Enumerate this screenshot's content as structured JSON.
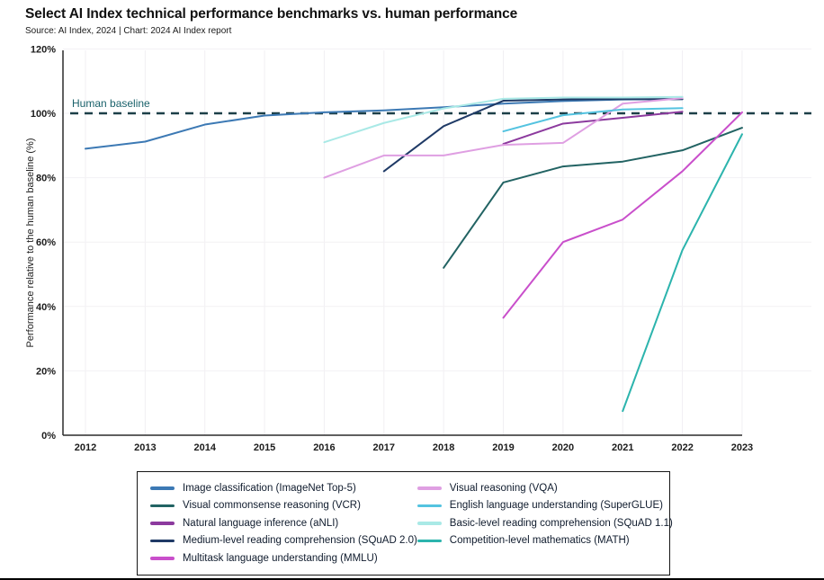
{
  "header": {
    "title": "Select AI Index technical performance benchmarks vs. human performance",
    "source": "Source: AI Index, 2024 | Chart: 2024 AI Index report"
  },
  "chart_data": {
    "type": "line",
    "title": "Select AI Index technical performance benchmarks vs. human performance",
    "xlabel": "",
    "ylabel": "Performance relative to the human baseline (%)",
    "xlim": [
      2012,
      2023
    ],
    "ylim": [
      0,
      120
    ],
    "x_ticks": [
      2012,
      2013,
      2014,
      2015,
      2016,
      2017,
      2018,
      2019,
      2020,
      2021,
      2022,
      2023
    ],
    "y_ticks": [
      0,
      20,
      40,
      60,
      80,
      100,
      120
    ],
    "y_tick_suffix": "%",
    "grid": true,
    "legend_position": "bottom",
    "baseline": {
      "value": 100,
      "label": "Human baseline",
      "line_color": "#1c3f48",
      "label_color": "#1a626b"
    },
    "series": [
      {
        "id": "imagenet",
        "name": "Image classification (ImageNet Top-5)",
        "color": "#3c79b4",
        "x": [
          2012,
          2013,
          2014,
          2015,
          2016,
          2017,
          2018,
          2019,
          2020,
          2021,
          2022
        ],
        "values": [
          89,
          91.2,
          96.5,
          99.3,
          100.3,
          100.9,
          101.9,
          103.0,
          103.8,
          104.3,
          104.4
        ]
      },
      {
        "id": "vcr",
        "name": "Visual commonsense reasoning (VCR)",
        "color": "#226363",
        "x": [
          2018,
          2019,
          2020,
          2021,
          2022,
          2023
        ],
        "values": [
          52,
          78.5,
          83.5,
          85,
          88.5,
          95.5
        ]
      },
      {
        "id": "anli",
        "name": "Natural language inference (aNLI)",
        "color": "#8c3a9e",
        "x": [
          2019,
          2020,
          2021,
          2022
        ],
        "values": [
          90.5,
          96.8,
          98.6,
          100.5
        ]
      },
      {
        "id": "squad2",
        "name": "Medium-level reading comprehension (SQuAD 2.0)",
        "color": "#1f3a66",
        "x": [
          2017,
          2018,
          2019,
          2020,
          2021,
          2022
        ],
        "values": [
          82,
          96,
          103.9,
          104.3,
          104.4,
          104.4
        ]
      },
      {
        "id": "mmlu",
        "name": "Multitask language understanding (MMLU)",
        "color": "#c94fcb",
        "x": [
          2019,
          2020,
          2021,
          2022,
          2023
        ],
        "values": [
          36.5,
          60,
          67,
          82,
          100.3
        ]
      },
      {
        "id": "vqa",
        "name": "Visual reasoning (VQA)",
        "color": "#df9fe2",
        "x": [
          2016,
          2017,
          2018,
          2019,
          2020,
          2021,
          2022
        ],
        "values": [
          80,
          86.9,
          86.9,
          90.2,
          90.8,
          103.0,
          104.7
        ]
      },
      {
        "id": "superglue",
        "name": "English language understanding (SuperGLUE)",
        "color": "#54c3e0",
        "x": [
          2019,
          2020,
          2021,
          2022
        ],
        "values": [
          94.4,
          99.4,
          101.2,
          101.6
        ]
      },
      {
        "id": "squad11",
        "name": "Basic-level reading comprehension (SQuAD 1.1)",
        "color": "#a9e9e6",
        "x": [
          2016,
          2017,
          2018,
          2019,
          2020,
          2021,
          2022
        ],
        "values": [
          91,
          97,
          101.5,
          104.5,
          104.9,
          104.9,
          105.1
        ]
      },
      {
        "id": "math",
        "name": "Competition-level mathematics (MATH)",
        "color": "#2cb4ad",
        "x": [
          2021,
          2022,
          2023
        ],
        "values": [
          7.5,
          57.5,
          93.5
        ]
      }
    ],
    "legend_columns": [
      5,
      4
    ]
  }
}
